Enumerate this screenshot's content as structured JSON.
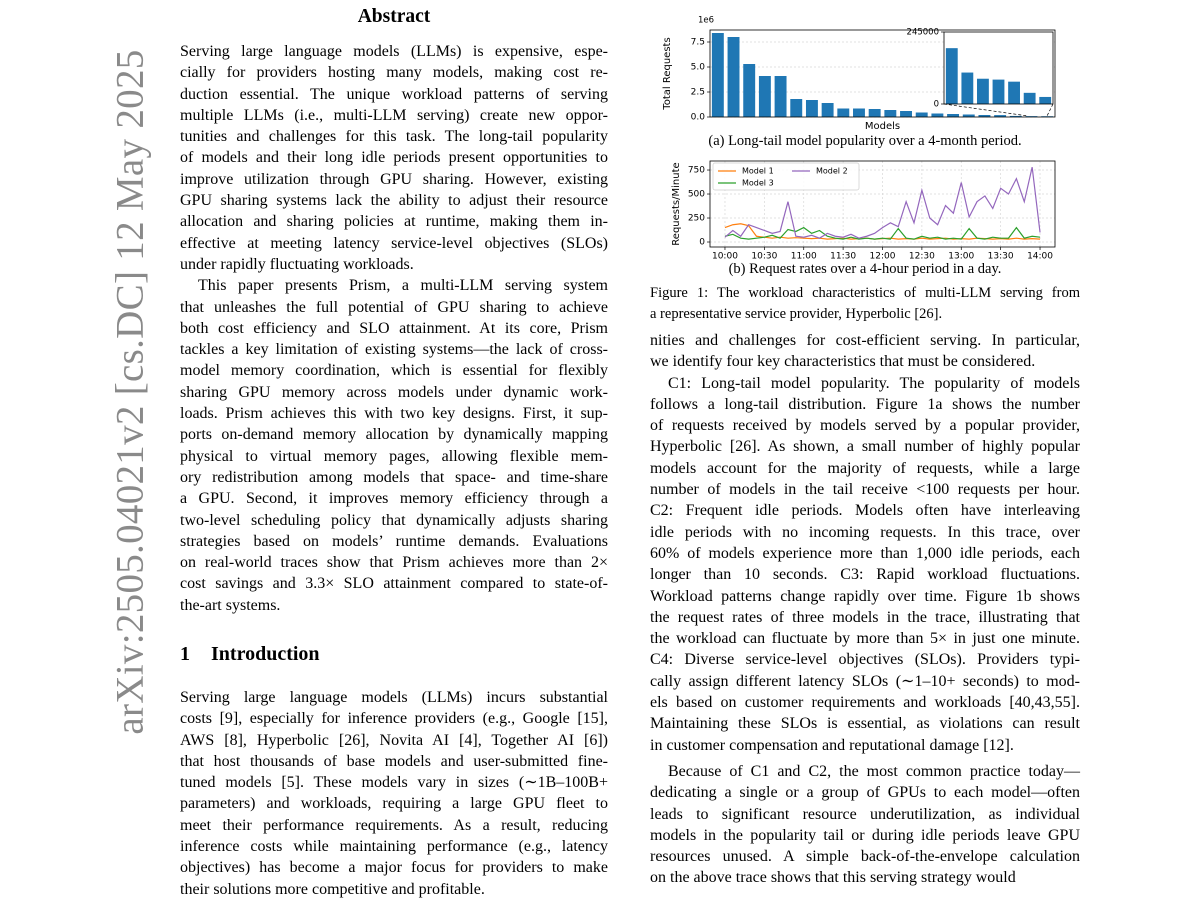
{
  "side_label": "arXiv:2505.04021v2  [cs.DC]  12 May 2025",
  "left": {
    "abstract_title": "Abstract",
    "abstract": [
      [
        "Serving large language models (LLMs) is expensive, espe-",
        "cially for providers hosting many models, making cost re-",
        "duction essential. The unique workload patterns of serving",
        "multiple LLMs (i.e., multi-LLM serving) create new oppor-",
        "tunities and challenges for this task. The long-tail popularity",
        "of models and their long idle periods present opportunities to",
        "improve utilization through GPU sharing. However, existing",
        "GPU sharing systems lack the ability to adjust their resource",
        "allocation and sharing policies at runtime, making them in-",
        "effective at meeting latency service-level objectives (SLOs)",
        "under rapidly fluctuating workloads."
      ],
      [
        "This paper presents Prism, a multi-LLM serving system",
        "that unleashes the full potential of GPU sharing to achieve",
        "both cost efficiency and SLO attainment. At its core, Prism",
        "tackles a key limitation of existing systems—the lack of cross-",
        "model memory coordination, which is essential for flexibly",
        "sharing GPU memory across models under dynamic work-",
        "loads. Prism achieves this with two key designs. First, it sup-",
        "ports on-demand memory allocation by dynamically mapping",
        "physical to virtual memory pages, allowing flexible mem-",
        "ory redistribution among models that space- and time-share",
        "a GPU. Second, it improves memory efficiency through a",
        "two-level scheduling policy that dynamically adjusts sharing",
        "strategies based on models’ runtime demands. Evaluations",
        "on real-world traces show that Prism achieves more than 2×",
        "cost savings and 3.3× SLO attainment compared to state-of-",
        "the-art systems."
      ]
    ],
    "section_number": "1",
    "section_title": "Introduction",
    "intro": [
      "Serving large language models (LLMs) incurs substantial",
      "costs [9], especially for inference providers (e.g., Google [15],",
      "AWS [8], Hyperbolic [26], Novita AI [4], Together AI [6])",
      "that host thousands of base models and user-submitted fine-",
      "tuned models [5]. These models vary in sizes (∼1B–100B+",
      "parameters) and workloads, requiring a large GPU fleet to",
      "meet their performance requirements. As a result, reducing",
      "inference costs while maintaining performance (e.g., latency",
      "objectives) has become a major focus for providers to make",
      "their solutions more competitive and profitable."
    ]
  },
  "figure": {
    "subcaption_a": "(a) Long-tail model popularity over a 4-month period.",
    "subcaption_b": "(b) Request rates over a 4-hour period in a day.",
    "caption": [
      "Figure 1: The workload characteristics of multi-LLM serving from",
      "a representative service provider, Hyperbolic [26]."
    ]
  },
  "chart_data": [
    {
      "type": "bar",
      "ylabel": "Total Requests",
      "xlabel": "Models",
      "y_offset_label": "1e6",
      "categories": [
        null,
        null,
        null,
        null,
        null,
        null,
        null,
        null,
        null,
        null,
        null,
        null,
        null,
        null,
        null,
        null,
        null,
        null,
        null,
        null,
        null,
        null
      ],
      "values": [
        8400000,
        8000000,
        5300000,
        4100000,
        4100000,
        1800000,
        1700000,
        1400000,
        850000,
        850000,
        800000,
        700000,
        600000,
        450000,
        350000,
        300000,
        250000,
        200000,
        190000,
        107000,
        86000,
        76000
      ],
      "color": "#1f77b4",
      "ylim": [
        0,
        8700000
      ],
      "yticks": [
        {
          "value": 0,
          "label": "0.0"
        },
        {
          "value": 2500000,
          "label": "2.5"
        },
        {
          "value": 5000000,
          "label": "5.0"
        },
        {
          "value": 7500000,
          "label": "7.5"
        }
      ],
      "grid": true
    },
    {
      "type": "bar",
      "categories": [
        null,
        null,
        null,
        null,
        null,
        null,
        null
      ],
      "values": [
        190000,
        107000,
        86000,
        83000,
        76000,
        38000,
        24000
      ],
      "color": "#1f77b4",
      "ylim": [
        0,
        245000
      ],
      "yticks": [
        0,
        245000
      ],
      "grid": false
    },
    {
      "type": "line",
      "ylabel": "Requests/Minute",
      "x": [
        10.0,
        10.1,
        10.2,
        10.3,
        10.4,
        10.5,
        10.6,
        10.7,
        10.8,
        10.9,
        11.0,
        11.1,
        11.2,
        11.3,
        11.4,
        11.5,
        11.6,
        11.7,
        11.8,
        11.9,
        12.0,
        12.1,
        12.2,
        12.3,
        12.4,
        12.5,
        12.6,
        12.7,
        12.8,
        12.9,
        13.0,
        13.1,
        13.2,
        13.3,
        13.4,
        13.5,
        13.6,
        13.7,
        13.8,
        13.9,
        14.0
      ],
      "xlim": [
        9.81,
        14.19
      ],
      "xticks": [
        {
          "value": 10,
          "label": "10:00"
        },
        {
          "value": 10.5,
          "label": "10:30"
        },
        {
          "value": 11,
          "label": "11:00"
        },
        {
          "value": 11.5,
          "label": "11:30"
        },
        {
          "value": 12,
          "label": "12:00"
        },
        {
          "value": 12.5,
          "label": "12:30"
        },
        {
          "value": 13,
          "label": "13:00"
        },
        {
          "value": 13.5,
          "label": "13:30"
        },
        {
          "value": 14,
          "label": "14:00"
        }
      ],
      "ylim": [
        -52,
        844
      ],
      "yticks": [
        0,
        250,
        500,
        750
      ],
      "grid": true,
      "legend": "upper left",
      "series": [
        {
          "name": "Model 1",
          "color": "#ff7f0e",
          "values": [
            150,
            180,
            190,
            170,
            60,
            50,
            40,
            50,
            40,
            45,
            40,
            35,
            40,
            30,
            35,
            40,
            30,
            35,
            40,
            30,
            35,
            40,
            30,
            35,
            30,
            40,
            30,
            35,
            40,
            30,
            35,
            30,
            40,
            35,
            30,
            35,
            30,
            40,
            30,
            35,
            30
          ]
        },
        {
          "name": "Model 3",
          "color": "#2ca02c",
          "values": [
            60,
            80,
            40,
            30,
            40,
            50,
            70,
            40,
            130,
            110,
            150,
            90,
            120,
            60,
            40,
            30,
            50,
            30,
            40,
            30,
            40,
            30,
            140,
            40,
            30,
            60,
            40,
            50,
            30,
            40,
            30,
            140,
            40,
            30,
            50,
            40,
            40,
            150,
            40,
            60,
            50
          ]
        },
        {
          "name": "Model 2",
          "color": "#9467bd",
          "values": [
            50,
            120,
            60,
            180,
            150,
            120,
            90,
            110,
            420,
            60,
            50,
            70,
            40,
            90,
            60,
            50,
            80,
            40,
            60,
            90,
            150,
            200,
            160,
            420,
            200,
            540,
            250,
            180,
            380,
            300,
            620,
            260,
            420,
            480,
            350,
            560,
            500,
            660,
            420,
            780,
            100
          ]
        }
      ]
    }
  ],
  "right": {
    "paragraphs": [
      [
        "nities and challenges for cost-efficient serving. In particular,",
        "we identify four key characteristics that must be considered."
      ],
      [
        "C1: Long-tail model popularity. The popularity of models",
        "follows a long-tail distribution. Figure 1a shows the number",
        "of requests received by models served by a popular provider,",
        "Hyperbolic [26]. As shown, a small number of highly popular",
        "models account for the majority of requests, while a large",
        "number of models in the tail receive <100 requests per hour.",
        "C2: Frequent idle periods. Models often have interleaving",
        "idle periods with no incoming requests. In this trace, over",
        "60% of models experience more than 1,000 idle periods, each",
        "longer than 10 seconds. C3: Rapid workload fluctuations.",
        "Workload patterns change rapidly over time. Figure 1b shows",
        "the request rates of three models in the trace, illustrating that",
        "the workload can fluctuate by more than 5× in just one minute.",
        "C4: Diverse service-level objectives (SLOs). Providers typi-",
        "cally assign different latency SLOs (∼1–10+ seconds) to mod-",
        "els based on customer requirements and workloads [40,43,55].",
        "Maintaining these SLOs is essential, as violations can result",
        "in customer compensation and reputational damage [12]."
      ],
      [
        "Because of C1 and C2, the most common practice today—",
        "dedicating a single or a group of GPUs to each model—often",
        "leads to significant resource underutilization, as individual",
        "models in the popularity tail or during idle periods leave GPU",
        "resources unused. A simple back-of-the-envelope calculation",
        "on the above trace shows that this serving strategy would"
      ]
    ]
  }
}
